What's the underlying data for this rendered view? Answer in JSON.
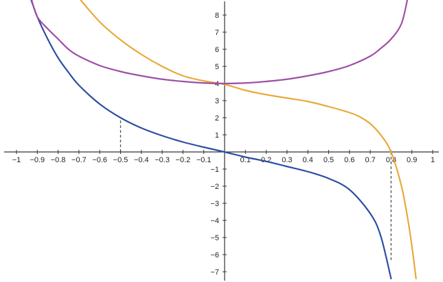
{
  "chart_data": {
    "type": "line",
    "title": "",
    "xlabel": "",
    "ylabel": "",
    "xlim": [
      -1.05,
      1.05
    ],
    "ylim": [
      -7.4,
      8.7
    ],
    "grid": false,
    "x_ticks": [
      {
        "value": -1,
        "label": "−1"
      },
      {
        "value": -0.9,
        "label": "−0.9"
      },
      {
        "value": -0.8,
        "label": "−0.8"
      },
      {
        "value": -0.7,
        "label": "−0.7"
      },
      {
        "value": -0.6,
        "label": "−0.6"
      },
      {
        "value": -0.5,
        "label": "−0.5"
      },
      {
        "value": -0.4,
        "label": "−0.4"
      },
      {
        "value": -0.3,
        "label": "−0.3"
      },
      {
        "value": -0.2,
        "label": "−0.2"
      },
      {
        "value": -0.1,
        "label": "−0.1"
      },
      {
        "value": 0.1,
        "label": "0.1"
      },
      {
        "value": 0.2,
        "label": "0.2"
      },
      {
        "value": 0.3,
        "label": "0.3"
      },
      {
        "value": 0.4,
        "label": "0.4"
      },
      {
        "value": 0.5,
        "label": "0.5"
      },
      {
        "value": 0.6,
        "label": "0.6"
      },
      {
        "value": 0.7,
        "label": "0.7"
      },
      {
        "value": 0.8,
        "label": "0.8"
      },
      {
        "value": 0.9,
        "label": "0.9"
      },
      {
        "value": 1,
        "label": "1"
      }
    ],
    "y_ticks": [
      {
        "value": 8,
        "label": "8"
      },
      {
        "value": 7,
        "label": "7"
      },
      {
        "value": 6,
        "label": "6"
      },
      {
        "value": 5,
        "label": "5"
      },
      {
        "value": 4,
        "label": "4"
      },
      {
        "value": 3,
        "label": "3"
      },
      {
        "value": 2,
        "label": "2"
      },
      {
        "value": 1,
        "label": "1"
      },
      {
        "value": -1,
        "label": "−1"
      },
      {
        "value": -2,
        "label": "−2"
      },
      {
        "value": -3,
        "label": "−3"
      },
      {
        "value": -4,
        "label": "−4"
      },
      {
        "value": -5,
        "label": "−5"
      },
      {
        "value": -6,
        "label": "−6"
      },
      {
        "value": -7,
        "label": "−7"
      }
    ],
    "series": [
      {
        "color": "#2c4fa3",
        "x": [
          -0.94,
          -0.9,
          -0.85,
          -0.8,
          -0.75,
          -0.7,
          -0.6,
          -0.5,
          -0.4,
          -0.3,
          -0.2,
          -0.1,
          0,
          0.1,
          0.2,
          0.3,
          0.4,
          0.5,
          0.6,
          0.7,
          0.75,
          0.8
        ],
        "y": [
          9.25,
          7.9,
          6.6,
          5.5,
          4.65,
          3.9,
          2.8,
          2.0,
          1.4,
          0.95,
          0.58,
          0.28,
          0,
          -0.3,
          -0.55,
          -0.85,
          -1.15,
          -1.55,
          -2.2,
          -3.6,
          -4.9,
          -7.4
        ]
      },
      {
        "color": "#e8a93a",
        "x": [
          -0.7,
          -0.6,
          -0.5,
          -0.4,
          -0.3,
          -0.2,
          -0.1,
          0,
          0.1,
          0.2,
          0.3,
          0.4,
          0.5,
          0.6,
          0.65,
          0.7,
          0.75,
          0.8,
          0.85,
          0.88,
          0.9,
          0.92
        ],
        "y": [
          9.0,
          7.6,
          6.55,
          5.7,
          5.0,
          4.45,
          4.15,
          3.95,
          3.6,
          3.35,
          3.15,
          2.95,
          2.65,
          2.3,
          2.05,
          1.65,
          1.0,
          0,
          -2.0,
          -3.9,
          -5.5,
          -7.4
        ]
      },
      {
        "color": "#a04ea6",
        "x": [
          -0.93,
          -0.9,
          -0.85,
          -0.8,
          -0.75,
          -0.7,
          -0.6,
          -0.5,
          -0.4,
          -0.3,
          -0.2,
          -0.1,
          0,
          0.1,
          0.2,
          0.3,
          0.4,
          0.5,
          0.6,
          0.7,
          0.75,
          0.8,
          0.85,
          0.88
        ],
        "y": [
          9.0,
          7.9,
          7.2,
          6.6,
          6.0,
          5.6,
          5.05,
          4.7,
          4.45,
          4.25,
          4.12,
          4.03,
          4.0,
          4.03,
          4.12,
          4.25,
          4.45,
          4.7,
          5.05,
          5.6,
          6.05,
          6.6,
          7.5,
          9.0
        ]
      }
    ],
    "guides": [
      {
        "x": -0.5,
        "from": 0,
        "to": 2.0
      },
      {
        "x": 0.8,
        "from": 0,
        "to": -6.4
      }
    ]
  },
  "colors": {
    "axis": "#333333",
    "guide": "#555555",
    "series_blue": "#2c4fa3",
    "series_orange": "#e8a93a",
    "series_purple": "#a04ea6"
  }
}
